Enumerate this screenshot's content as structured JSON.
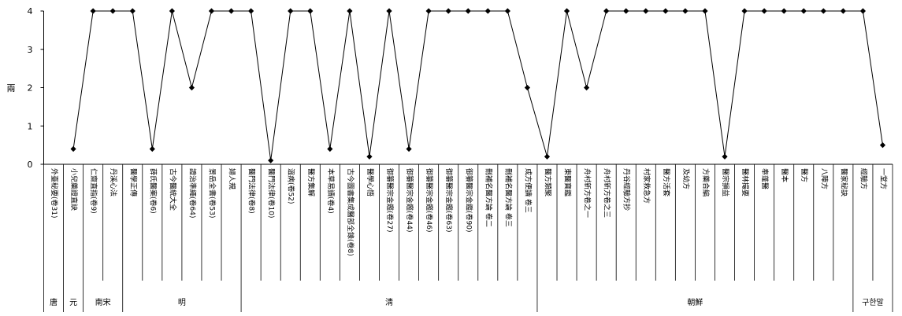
{
  "chart_data": {
    "type": "line",
    "ylabel": "兩",
    "ylim": [
      0,
      4
    ],
    "yticks": [
      0,
      1,
      2,
      3,
      4
    ],
    "grid": false,
    "line_color": "#000000",
    "category_groups": [
      {
        "group": "唐",
        "categories": [
          "外臺秘要(卷31)"
        ]
      },
      {
        "group": "元",
        "categories": [
          "小兒藥證直訣"
        ]
      },
      {
        "group": "南宋",
        "categories": [
          "仁齋直指(卷9)",
          "丹溪心法"
        ]
      },
      {
        "group": "明",
        "categories": [
          "醫學正傳",
          "薛氏醫案(卷6)",
          "古今醫統大全",
          "證治準繩(卷64)",
          "景岳全書(卷53)",
          "婦人規"
        ]
      },
      {
        "group": "淸",
        "categories": [
          "醫門法律(卷8)",
          "醫門法律(卷10)",
          "溫病(卷52)",
          "醫方集解",
          "本草易讀(卷4)",
          "古今圖書集成醫部全錄(卷8)",
          "醫學心悟",
          "御纂醫宗金鑑(卷27)",
          "御纂醫宗金鑑(卷44)",
          "御纂醫宗金鑑(卷46)",
          "御纂醫宗金鑑(卷63)",
          "御纂醫宗金鑑(卷90)",
          "刪補名醫方論 卷二",
          "刪補名醫方論 卷三",
          "成方便讀 卷三"
        ]
      },
      {
        "group": "朝鮮",
        "categories": [
          "醫方類聚",
          "東醫寶鑑",
          "舟村新方卷之一",
          "舟村新方卷之三",
          "丹谷經驗方抄",
          "村家救急方",
          "醫方活套",
          "及幼方",
          "方藥合編",
          "醫宗損益",
          "醫林撮要",
          "奉蓬醫",
          "醫本",
          "醫方",
          "八陣方",
          "醫家秘訣"
        ]
      },
      {
        "group": "구한말",
        "categories": [
          "經驗方",
          "一堂方"
        ]
      }
    ],
    "values": [
      null,
      0.4,
      4,
      4,
      4,
      0.4,
      4,
      2,
      4,
      4,
      4,
      0.1,
      4,
      4,
      0.4,
      4,
      0.2,
      4,
      0.4,
      4,
      4,
      4,
      4,
      4,
      2,
      0.2,
      4,
      2,
      4,
      4,
      4,
      4,
      4,
      4,
      0.2,
      4,
      4,
      4,
      4,
      4,
      4,
      4,
      0.5
    ]
  }
}
